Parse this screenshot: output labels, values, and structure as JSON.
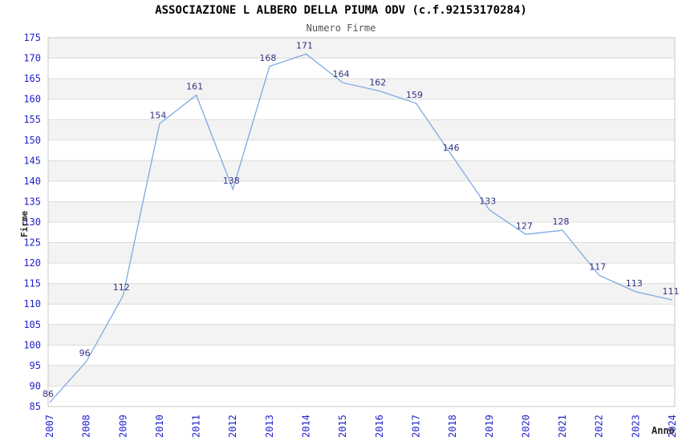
{
  "header": {
    "title": "ASSOCIAZIONE L ALBERO DELLA PIUMA ODV (c.f.92153170284)",
    "subtitle": "Numero Firme"
  },
  "chart_data": {
    "type": "line",
    "title": "ASSOCIAZIONE L ALBERO DELLA PIUMA ODV (c.f.92153170284)",
    "subtitle": "Numero Firme",
    "xlabel": "Anno",
    "ylabel": "Firme",
    "categories": [
      "2007",
      "2008",
      "2009",
      "2010",
      "2011",
      "2012",
      "2013",
      "2014",
      "2015",
      "2016",
      "2017",
      "2018",
      "2019",
      "2020",
      "2021",
      "2022",
      "2023",
      "2024"
    ],
    "values": [
      86,
      96,
      112,
      154,
      161,
      138,
      168,
      171,
      164,
      162,
      159,
      146,
      133,
      127,
      128,
      117,
      113,
      111
    ],
    "ylim": [
      85,
      175
    ],
    "ytick_step": 5,
    "grid": "horizontal-bands",
    "legend": "none",
    "colors": {
      "line": "#7daae2",
      "tick_label": "#2222cc",
      "data_label": "#333380",
      "band": "#f3f3f3",
      "gridline": "#dcdcdc",
      "border": "#c8c8c8",
      "title": "#000000",
      "subtitle": "#555555",
      "axis_label": "#222222",
      "background": "#ffffff"
    }
  }
}
